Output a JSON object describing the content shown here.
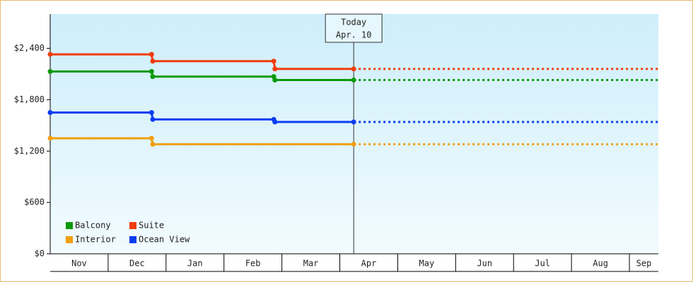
{
  "chart_data": {
    "type": "step-line",
    "categories": [
      "Nov",
      "Dec",
      "Jan",
      "Feb",
      "Mar",
      "Apr",
      "May",
      "Jun",
      "Jul",
      "Aug",
      "Sep"
    ],
    "xlim": [
      0,
      10.5
    ],
    "ylim": [
      0,
      2800
    ],
    "yticks": [
      {
        "value": 0,
        "label": "$0"
      },
      {
        "value": 600,
        "label": "$600"
      },
      {
        "value": 1200,
        "label": "$1,200"
      },
      {
        "value": 1800,
        "label": "$1,800"
      },
      {
        "value": 2400,
        "label": "$2,400"
      }
    ],
    "today": {
      "x": 5.24,
      "label": "Today",
      "date": "Apr. 10"
    },
    "legend": "lower-left",
    "series": [
      {
        "name": "Balcony",
        "color": "#0a9a0a",
        "x": [
          0,
          1.75,
          1.77,
          3.86,
          3.88,
          5.24
        ],
        "values": [
          2130,
          2130,
          2070,
          2070,
          2030,
          2030
        ]
      },
      {
        "name": "Suite",
        "color": "#f03c0a",
        "x": [
          0,
          1.75,
          1.77,
          3.86,
          3.88,
          5.24
        ],
        "values": [
          2330,
          2330,
          2250,
          2250,
          2160,
          2160
        ]
      },
      {
        "name": "Interior",
        "color": "#f0a010",
        "x": [
          0,
          1.75,
          1.77,
          5.24
        ],
        "values": [
          1350,
          1350,
          1280,
          1280
        ]
      },
      {
        "name": "Ocean View",
        "color": "#0a3cf0",
        "x": [
          0,
          1.75,
          1.77,
          3.86,
          3.88,
          5.24
        ],
        "values": [
          1650,
          1650,
          1570,
          1570,
          1540,
          1540
        ]
      }
    ]
  }
}
